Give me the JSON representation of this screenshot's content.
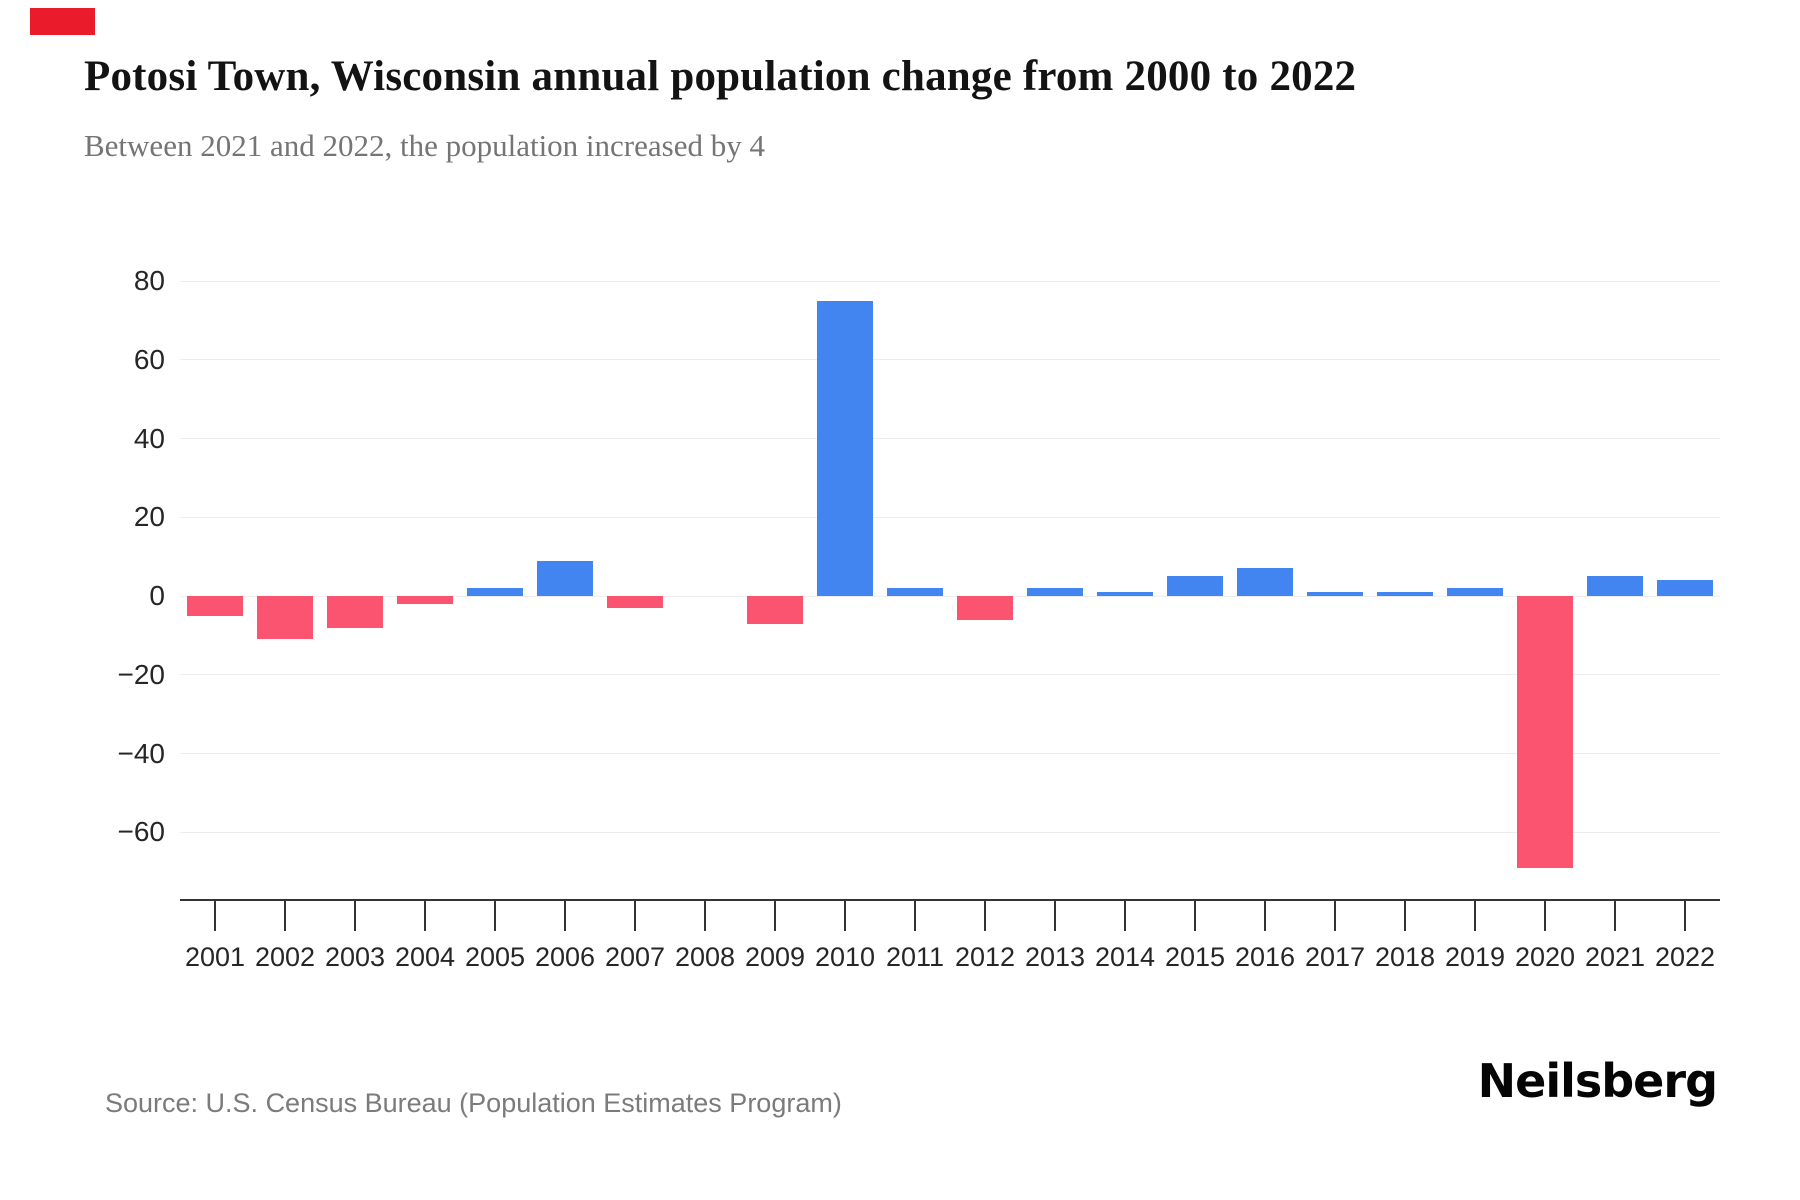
{
  "marker": {
    "color": "#ea1c2c"
  },
  "header": {
    "title": "Potosi Town, Wisconsin annual population change from 2000 to 2022",
    "subtitle": "Between 2021 and 2022, the population increased by 4"
  },
  "footer": {
    "source": "Source: U.S. Census Bureau (Population Estimates Program)",
    "brand": "Neilsberg"
  },
  "chart_data": {
    "type": "bar",
    "title": "Potosi Town, Wisconsin annual population change from 2000 to 2022",
    "subtitle": "Between 2021 and 2022, the population increased by 4",
    "xlabel": "",
    "ylabel": "",
    "categories": [
      "2001",
      "2002",
      "2003",
      "2004",
      "2005",
      "2006",
      "2007",
      "2008",
      "2009",
      "2010",
      "2011",
      "2012",
      "2013",
      "2014",
      "2015",
      "2016",
      "2017",
      "2018",
      "2019",
      "2020",
      "2021",
      "2022"
    ],
    "values": [
      -5,
      -11,
      -8,
      -2,
      2,
      9,
      -3,
      0,
      -7,
      75,
      2,
      -6,
      2,
      1,
      5,
      7,
      1,
      1,
      2,
      -69,
      5,
      4
    ],
    "yticks": [
      80,
      60,
      40,
      20,
      0,
      -20,
      -40,
      -60
    ],
    "ytick_labels": [
      "80",
      "60",
      "40",
      "20",
      "0",
      "−20",
      "−40",
      "−60"
    ],
    "ylim": [
      -75,
      90
    ],
    "grid": true,
    "legend": false,
    "colors": {
      "positive": "#4284f0",
      "negative": "#fa5470",
      "gridline": "#ededed",
      "axis": "#333333"
    }
  }
}
